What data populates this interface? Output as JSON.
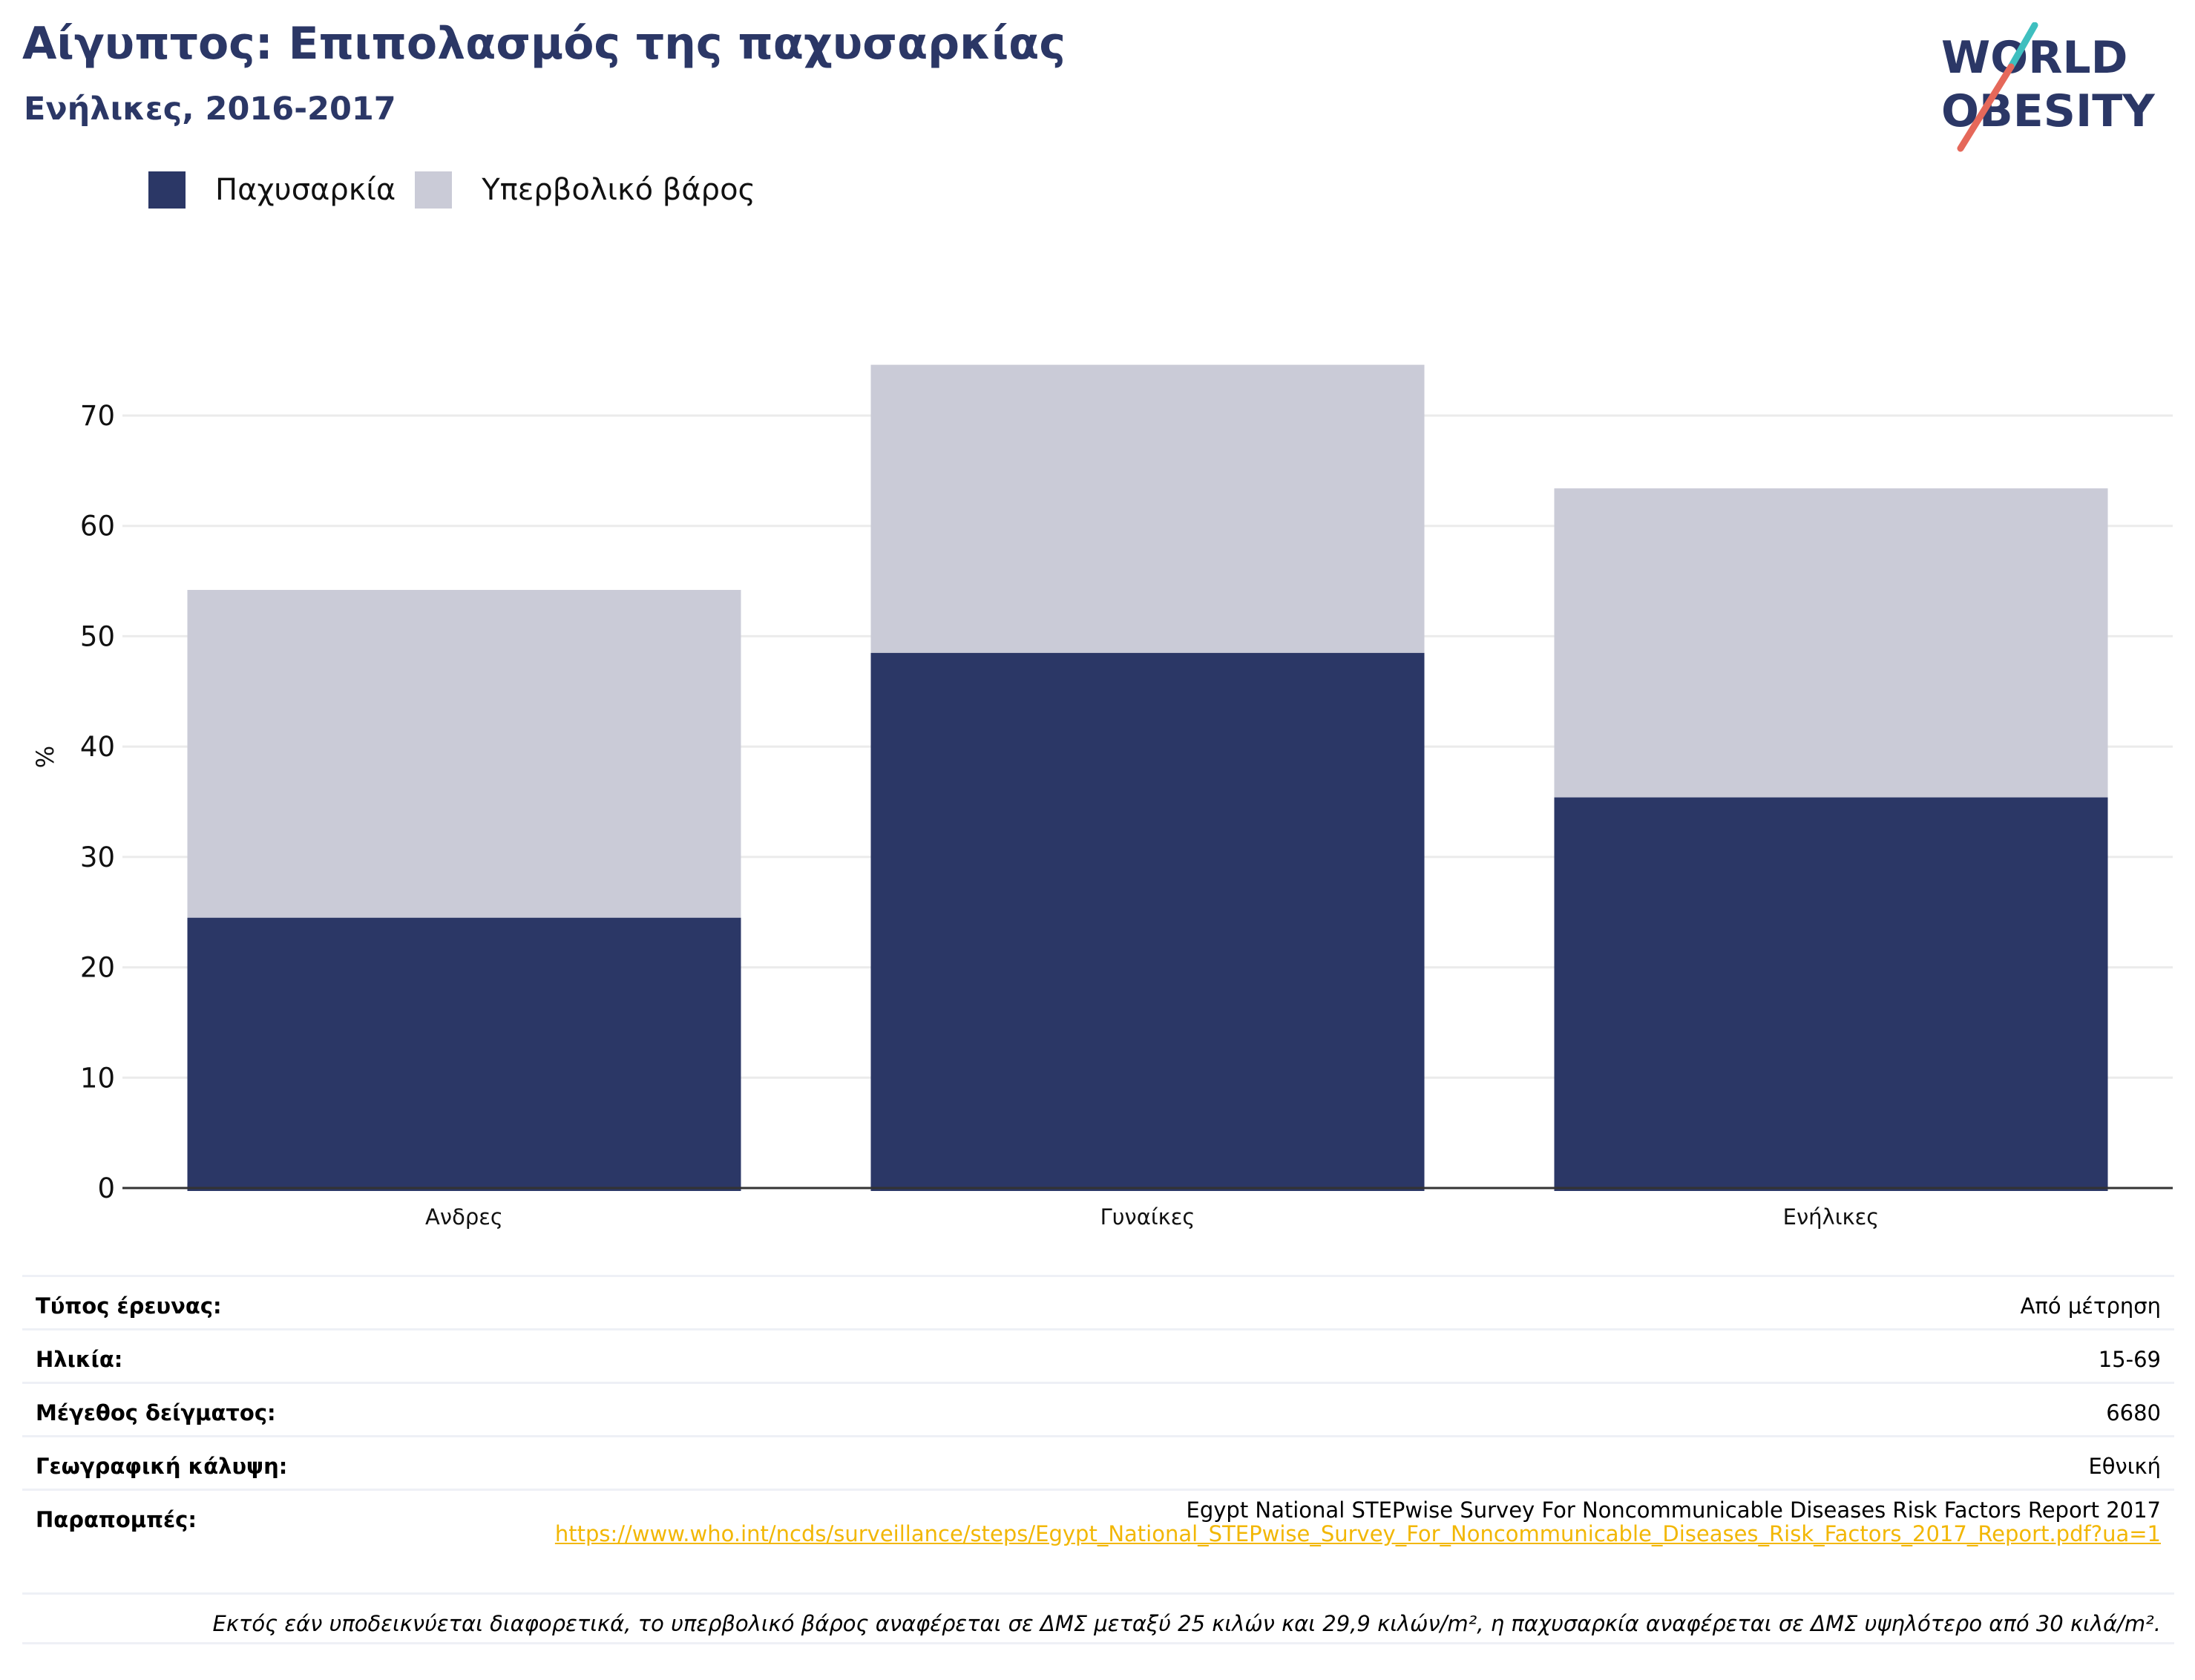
{
  "header": {
    "title": "Αίγυπτος: Επιπολασμός της παχυσαρκίας",
    "subtitle": "Ενήλικες, 2016-2017"
  },
  "logo": {
    "line1": "WORLD",
    "line2": "OBESITY"
  },
  "legend": [
    {
      "label": "Παχυσαρκία",
      "color": "#2b3766"
    },
    {
      "label": "Υπερβολικό βάρος",
      "color": "#cacbd7"
    }
  ],
  "chart_data": {
    "type": "bar",
    "stacked": true,
    "categories": [
      "Ανδρες",
      "Γυναίκες",
      "Ενήλικες"
    ],
    "series": [
      {
        "name": "Παχυσαρκία",
        "values": [
          24.5,
          48.5,
          35.4
        ],
        "color": "#2b3766"
      },
      {
        "name": "Υπερβολικό βάρος",
        "values": [
          29.7,
          26.1,
          28.0
        ],
        "color": "#cacbd7"
      }
    ],
    "ylabel": "%",
    "ylim": [
      0,
      80
    ],
    "yticks": [
      0,
      10,
      20,
      30,
      40,
      50,
      60,
      70
    ],
    "grid": true
  },
  "info": {
    "survey_type": {
      "label": "Τύπος έρευνας:",
      "value": "Από μέτρηση"
    },
    "age": {
      "label": "Ηλικία:",
      "value": "15-69"
    },
    "sample_size": {
      "label": "Μέγεθος δείγματος:",
      "value": "6680"
    },
    "coverage": {
      "label": "Γεωγραφική κάλυψη:",
      "value": "Εθνική"
    },
    "references": {
      "label": "Παραπομπές:",
      "value": "Egypt National STEPwise Survey For Noncommunicable Diseases Risk Factors Report 2017",
      "url": "https://www.who.int/ncds/surveillance/steps/Egypt_National_STEPwise_Survey_For_Noncommunicable_Diseases_Risk_Factors_2017_Report.pdf?ua=1"
    },
    "note": "Εκτός εάν υποδεικνύεται διαφορετικά, το υπερβολικό βάρος αναφέρεται σε ΔΜΣ μεταξύ 25 κιλών και 29,9 κιλών/m², η παχυσαρκία αναφέρεται σε ΔΜΣ υψηλότερο από 30 κιλά/m²."
  }
}
